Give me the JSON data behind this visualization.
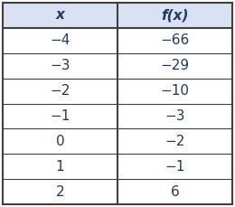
{
  "headers": [
    "x",
    "f(x)"
  ],
  "rows": [
    [
      "−4",
      "−66"
    ],
    [
      "−3",
      "−29"
    ],
    [
      "−2",
      "−10"
    ],
    [
      "−1",
      "−3"
    ],
    [
      "0",
      "−2"
    ],
    [
      "1",
      "−1"
    ],
    [
      "2",
      "6"
    ]
  ],
  "header_bg": "#d9e1f2",
  "row_bg": "#ffffff",
  "border_color": "#404040",
  "header_text_color": "#1f3864",
  "row_text_color": "#1f3864",
  "header_fontsize": 11,
  "row_fontsize": 11,
  "figsize": [
    2.6,
    2.29
  ],
  "dpi": 100
}
